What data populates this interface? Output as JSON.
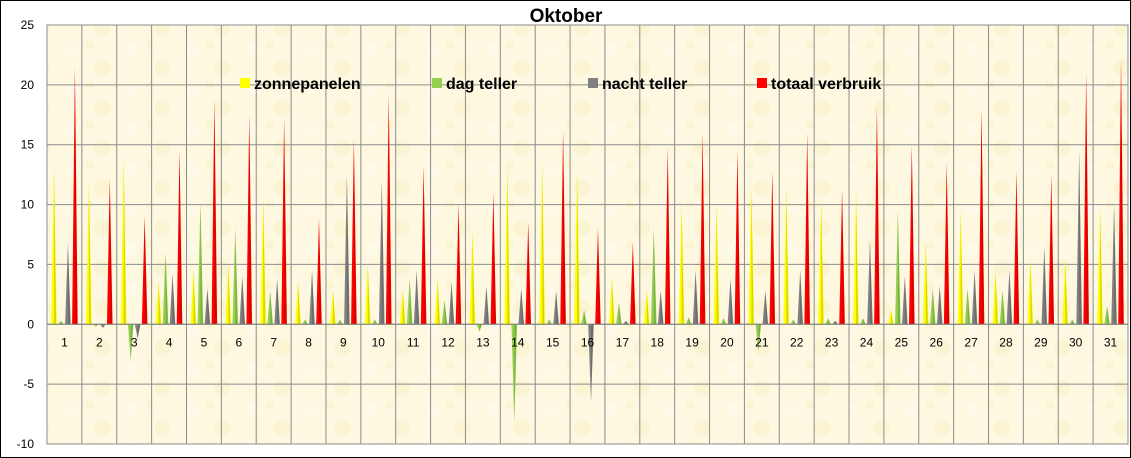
{
  "chart_data": {
    "type": "bar",
    "title": "Oktober",
    "xlabel": "",
    "ylabel": "",
    "ylim": [
      -10,
      25
    ],
    "yticks": [
      -10,
      -5,
      0,
      5,
      10,
      15,
      20,
      25
    ],
    "grid": true,
    "legend_position": "top",
    "background": "#fdf8df",
    "categories": [
      "1",
      "2",
      "3",
      "4",
      "5",
      "6",
      "7",
      "8",
      "9",
      "10",
      "11",
      "12",
      "13",
      "14",
      "15",
      "16",
      "17",
      "18",
      "19",
      "20",
      "21",
      "22",
      "23",
      "24",
      "25",
      "26",
      "27",
      "28",
      "29",
      "30",
      "31"
    ],
    "series": [
      {
        "name": "zonnepanelen",
        "color": "#ffff00",
        "values": [
          13.2,
          12.0,
          13.8,
          3.5,
          4.5,
          5.0,
          10.5,
          3.5,
          2.8,
          5.0,
          2.8,
          3.8,
          7.8,
          13.2,
          13.5,
          12.8,
          4.0,
          2.8,
          10.0,
          10.0,
          11.5,
          11.5,
          10.5,
          11.0,
          1.2,
          6.8,
          9.5,
          4.5,
          5.5,
          5.5,
          9.8
        ]
      },
      {
        "name": "dag teller",
        "color": "#92d050",
        "values": [
          0.3,
          -0.2,
          -3.0,
          6.0,
          10.2,
          8.0,
          2.8,
          0.4,
          0.4,
          0.4,
          3.8,
          2.0,
          -0.6,
          -8.2,
          0.4,
          1.2,
          1.8,
          8.0,
          0.6,
          0.5,
          -2.2,
          0.4,
          0.5,
          0.5,
          9.5,
          3.0,
          3.0,
          2.8,
          0.4,
          0.4,
          1.5
        ]
      },
      {
        "name": "nacht teller",
        "color": "#808080",
        "values": [
          6.8,
          -0.3,
          -1.2,
          4.2,
          3.0,
          4.0,
          3.8,
          4.5,
          12.5,
          12.0,
          4.5,
          3.5,
          3.2,
          3.0,
          2.8,
          -6.5,
          0.3,
          2.8,
          4.5,
          3.8,
          2.8,
          4.5,
          0.3,
          7.0,
          4.0,
          3.2,
          4.5,
          4.5,
          6.5,
          14.5,
          10.0
        ]
      },
      {
        "name": "totaal verbruik",
        "color": "#ff0000",
        "values": [
          21.5,
          12.2,
          9.0,
          14.5,
          18.8,
          17.5,
          17.2,
          8.8,
          15.5,
          19.2,
          13.2,
          10.0,
          11.0,
          8.5,
          16.2,
          8.0,
          6.8,
          14.8,
          16.0,
          14.5,
          12.8,
          16.0,
          11.2,
          18.2,
          15.0,
          13.5,
          18.0,
          12.8,
          12.5,
          21.0,
          22.2
        ]
      }
    ]
  }
}
